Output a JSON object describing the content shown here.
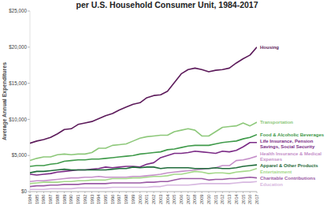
{
  "chart_data": {
    "type": "line",
    "title": "per U.S. Household Consumer Unit, 1984-2017",
    "y_label": "Average Annual Expenditures",
    "x": [
      1984,
      1985,
      1986,
      1987,
      1988,
      1989,
      1990,
      1991,
      1992,
      1993,
      1994,
      1995,
      1996,
      1997,
      1998,
      1999,
      2000,
      2001,
      2002,
      2003,
      2004,
      2005,
      2006,
      2007,
      2008,
      2009,
      2010,
      2011,
      2012,
      2013,
      2014,
      2015,
      2016,
      2017
    ],
    "xlim": [
      1984,
      2017
    ],
    "xticks": [
      1984,
      1985,
      1986,
      1987,
      1988,
      1989,
      1990,
      1991,
      1992,
      1993,
      1994,
      1995,
      1996,
      1997,
      1998,
      1999,
      2000,
      2001,
      2002,
      2003,
      2004,
      2005,
      2006,
      2007,
      2008,
      2009,
      2010,
      2011,
      2012,
      2013,
      2014,
      2015,
      2016,
      2017
    ],
    "ylim": [
      0,
      25000
    ],
    "yticks": [
      {
        "value": 0,
        "label": "$0"
      },
      {
        "value": 5000,
        "label": "$5,000"
      },
      {
        "value": 10000,
        "label": "$10,000"
      },
      {
        "value": 15000,
        "label": "$15,000"
      },
      {
        "value": 20000,
        "label": "$20,000"
      },
      {
        "value": 25000,
        "label": "$25,000"
      }
    ],
    "grid": false,
    "series": [
      {
        "name": "Housing",
        "color": "#5c1a5a",
        "values": [
          6700,
          7000,
          7200,
          7500,
          8000,
          8600,
          8700,
          9300,
          9500,
          9700,
          10100,
          10500,
          10800,
          11300,
          11700,
          12100,
          12300,
          13000,
          13300,
          13400,
          13900,
          15100,
          16300,
          16900,
          17100,
          16900,
          16600,
          16800,
          16900,
          17100,
          17800,
          18400,
          18900,
          20000
        ]
      },
      {
        "name": "Transportation",
        "color": "#8dc87a",
        "values": [
          4300,
          4600,
          4800,
          4800,
          5100,
          5200,
          5100,
          5200,
          5200,
          5400,
          6000,
          6000,
          6400,
          6500,
          6600,
          7000,
          7400,
          7600,
          7700,
          7800,
          7800,
          8300,
          8500,
          8700,
          8500,
          7700,
          7700,
          8300,
          8900,
          9000,
          9100,
          9500,
          9100,
          9600
        ]
      },
      {
        "name": "Food & Alcoholic Beverages",
        "color": "#3f9a4a",
        "values": [
          3500,
          3600,
          3600,
          3800,
          3900,
          4200,
          4300,
          4400,
          4400,
          4500,
          4500,
          4600,
          4700,
          4800,
          4900,
          5000,
          5200,
          5300,
          5400,
          5500,
          5800,
          5900,
          6100,
          6300,
          6400,
          6400,
          6400,
          6600,
          6800,
          6900,
          7000,
          7300,
          7500,
          7900
        ]
      },
      {
        "name": "Life Insurance, Pension Savings, Social Security",
        "color": "#7b2b86",
        "values": [
          2400,
          2300,
          2400,
          2500,
          2700,
          2800,
          2900,
          3000,
          3000,
          3100,
          3200,
          3400,
          3300,
          3400,
          3500,
          3500,
          3400,
          3800,
          4000,
          4700,
          5000,
          5300,
          5300,
          5400,
          5600,
          5500,
          5400,
          5300,
          5600,
          5500,
          5700,
          6200,
          6800,
          6800
        ]
      },
      {
        "name": "Health Insurance & Medical Expenses",
        "color": "#c58fc9",
        "values": [
          1400,
          1500,
          1500,
          1600,
          1700,
          1800,
          1900,
          1900,
          2000,
          2000,
          2100,
          2000,
          2000,
          2000,
          2000,
          2100,
          2100,
          2200,
          2300,
          2400,
          2600,
          2700,
          2800,
          2900,
          3000,
          3100,
          3200,
          3300,
          3600,
          3600,
          4300,
          4400,
          4600,
          4900
        ]
      },
      {
        "name": "Apparel & Other Products",
        "color": "#1f6b3a",
        "values": [
          2600,
          2800,
          2800,
          2900,
          3000,
          3100,
          3000,
          3000,
          3000,
          3000,
          3000,
          3000,
          3100,
          3200,
          3200,
          3400,
          3300,
          3400,
          3400,
          3200,
          3300,
          3300,
          3300,
          3300,
          3200,
          3200,
          3200,
          3300,
          3200,
          3200,
          3300,
          3500,
          3600,
          3700
        ]
      },
      {
        "name": "Entertainment",
        "color": "#a5d88a",
        "values": [
          1100,
          1200,
          1300,
          1300,
          1300,
          1400,
          1400,
          1500,
          1500,
          1600,
          1600,
          1600,
          1800,
          1800,
          1800,
          1900,
          1900,
          2000,
          2100,
          2100,
          2200,
          2400,
          2400,
          2600,
          2800,
          2700,
          2500,
          2600,
          2600,
          2500,
          2700,
          2800,
          2900,
          3200
        ]
      },
      {
        "name": "Charitable Contributions",
        "color": "#9b5aa5",
        "values": [
          700,
          800,
          800,
          900,
          900,
          1000,
          1000,
          1000,
          1100,
          1100,
          1100,
          1100,
          1200,
          1200,
          1200,
          1200,
          1200,
          1300,
          1300,
          1400,
          1400,
          1600,
          1800,
          1800,
          1800,
          1800,
          1600,
          1700,
          1700,
          1800,
          1800,
          1900,
          2000,
          1900
        ]
      },
      {
        "name": "Education",
        "color": "#d7b8e0",
        "values": [
          300,
          300,
          300,
          400,
          400,
          400,
          400,
          500,
          500,
          500,
          500,
          500,
          600,
          600,
          600,
          600,
          600,
          600,
          700,
          700,
          900,
          900,
          900,
          900,
          1000,
          1100,
          1100,
          1100,
          1100,
          1100,
          1200,
          1300,
          1300,
          1400
        ]
      }
    ]
  }
}
